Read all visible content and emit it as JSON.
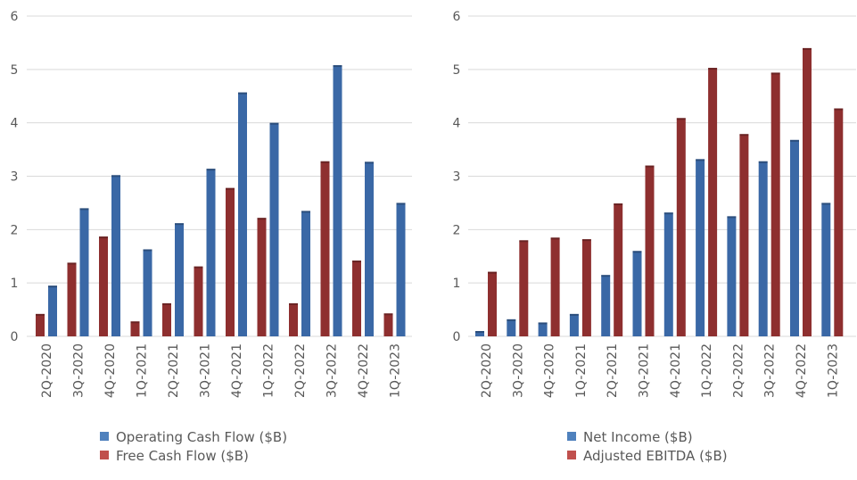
{
  "chart_data": [
    {
      "type": "bar",
      "categories": [
        "2Q-2020",
        "3Q-2020",
        "4Q-2020",
        "1Q-2021",
        "2Q-2021",
        "3Q-2021",
        "4Q-2021",
        "1Q-2022",
        "2Q-2022",
        "3Q-2022",
        "4Q-2022",
        "1Q-2023"
      ],
      "ylim": [
        0,
        6
      ],
      "yticks": [
        0,
        1,
        2,
        3,
        4,
        5,
        6
      ],
      "grid": true,
      "legend": "bottom",
      "series": [
        {
          "name": "Free Cash Flow ($B)",
          "color": "#8e2f2f",
          "legend_color": "#c0504d",
          "values": [
            0.42,
            1.38,
            1.87,
            0.28,
            0.62,
            1.31,
            2.78,
            2.22,
            0.62,
            3.28,
            1.42,
            0.43
          ]
        },
        {
          "name": "Operating Cash Flow ($B)",
          "color": "#3a68a6",
          "legend_color": "#4f81bd",
          "values": [
            0.95,
            2.4,
            3.02,
            1.63,
            2.12,
            3.14,
            4.57,
            4.0,
            2.35,
            5.08,
            3.27,
            2.5
          ]
        }
      ],
      "legend_order": [
        1,
        0
      ]
    },
    {
      "type": "bar",
      "categories": [
        "2Q-2020",
        "3Q-2020",
        "4Q-2020",
        "1Q-2021",
        "2Q-2021",
        "3Q-2021",
        "4Q-2021",
        "1Q-2022",
        "2Q-2022",
        "3Q-2022",
        "4Q-2022",
        "1Q-2023"
      ],
      "ylim": [
        0,
        6
      ],
      "yticks": [
        0,
        1,
        2,
        3,
        4,
        5,
        6
      ],
      "grid": true,
      "legend": "bottom",
      "series": [
        {
          "name": "Net Income ($B)",
          "color": "#3a68a6",
          "legend_color": "#4f81bd",
          "values": [
            0.1,
            0.32,
            0.26,
            0.42,
            1.15,
            1.6,
            2.32,
            3.32,
            2.25,
            3.28,
            3.68,
            2.5
          ]
        },
        {
          "name": "Adjusted EBITDA ($B)",
          "color": "#8e2f2f",
          "legend_color": "#c0504d",
          "values": [
            1.21,
            1.8,
            1.85,
            1.82,
            2.49,
            3.2,
            4.09,
            5.03,
            3.79,
            4.94,
            5.4,
            4.27
          ]
        }
      ],
      "legend_order": [
        0,
        1
      ]
    }
  ]
}
